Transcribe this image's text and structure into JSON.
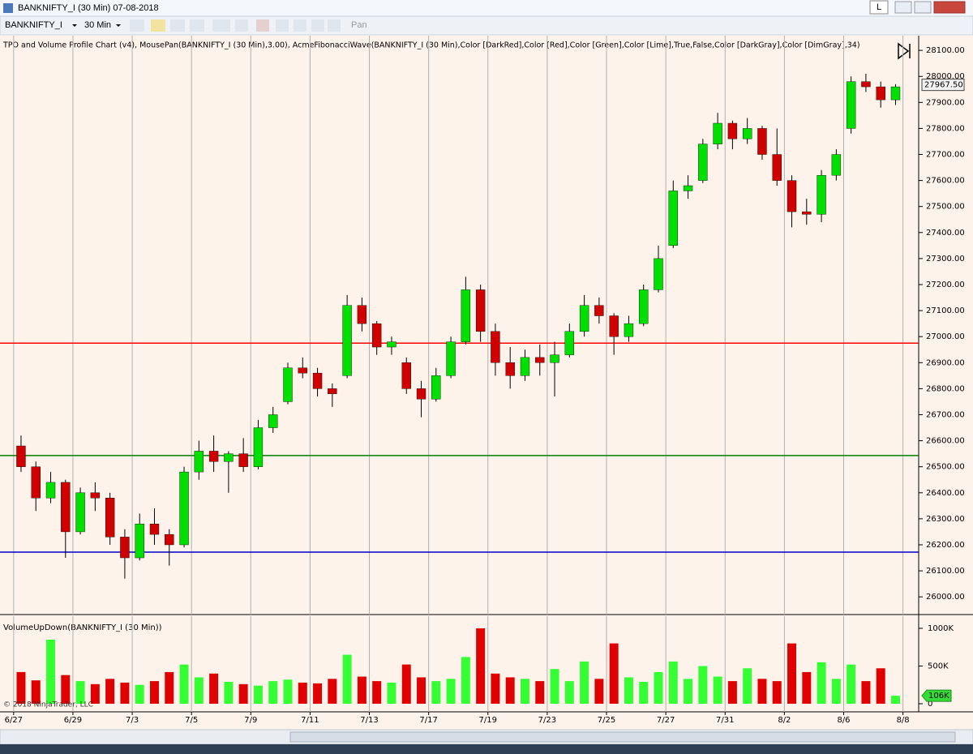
{
  "window": {
    "title": "BANKNIFTY_I (30 Min)  07-08-2018",
    "button": "L"
  },
  "toolbar": {
    "instrument": "BANKNIFTY_I",
    "interval": "30 Min",
    "pan": "Pan"
  },
  "copyright": "© 2018 NinjaTrader, LLC",
  "chart_data": [
    {
      "type": "candlestick",
      "title": "TPO and Volume Profile Chart (v4), MousePan(BANKNIFTY_I (30 Min),3.00), AcmeFibonacciWave(BANKNIFTY_I (30 Min),Color [DarkRed],Color [Red],Color [Green],Color [Lime],True,False,Color [DarkGray],Color [DimGray],34)",
      "x": [
        0.25,
        0.75,
        1.25,
        1.75,
        2.25,
        2.75,
        3.25,
        3.75,
        4.25,
        4.75,
        5.25,
        5.75,
        6.25,
        6.75,
        7.25,
        7.75,
        8.25,
        8.75,
        9.25,
        9.75,
        10.25,
        10.75,
        11.25,
        11.75,
        12.25,
        12.75,
        13.25,
        13.75,
        14.25,
        14.75,
        15.25,
        15.75,
        16.25,
        16.75,
        17.25,
        17.75,
        18.25,
        18.75,
        19.25,
        19.75,
        20.25,
        20.75,
        21.25,
        21.75,
        22.25,
        22.75,
        23.25,
        23.75,
        24.25,
        24.75,
        25.25,
        25.75,
        26.25,
        26.75,
        27.25,
        27.75,
        28.25,
        28.75,
        29.25,
        29.75
      ],
      "open": [
        26580,
        26500,
        26380,
        26440,
        26250,
        26400,
        26380,
        26230,
        26150,
        26280,
        26240,
        26200,
        26480,
        26560,
        26520,
        26550,
        26500,
        26650,
        26750,
        26880,
        26860,
        26800,
        26850,
        27120,
        27050,
        26960,
        26900,
        26800,
        26760,
        26850,
        26980,
        27180,
        27020,
        26900,
        26850,
        26920,
        26900,
        26930,
        27020,
        27120,
        27080,
        27000,
        27050,
        27180,
        27350,
        27560,
        27600,
        27740,
        27820,
        27760,
        27800,
        27700,
        27600,
        27480,
        27470,
        27620,
        27800,
        27980,
        27960,
        27910
      ],
      "high": [
        26620,
        26520,
        26480,
        26450,
        26420,
        26440,
        26400,
        26260,
        26320,
        26340,
        26260,
        26500,
        26600,
        26620,
        26560,
        26610,
        26680,
        26730,
        26900,
        26920,
        26880,
        26820,
        27160,
        27150,
        27060,
        27000,
        26920,
        26830,
        26880,
        27000,
        27230,
        27200,
        27050,
        26960,
        26950,
        26970,
        26980,
        27050,
        27160,
        27150,
        27090,
        27080,
        27200,
        27350,
        27600,
        27620,
        27760,
        27860,
        27830,
        27840,
        27810,
        27800,
        27620,
        27530,
        27640,
        27720,
        28000,
        28010,
        27980,
        27970
      ],
      "low": [
        26480,
        26330,
        26360,
        26150,
        26240,
        26330,
        26200,
        26070,
        26140,
        26200,
        26120,
        26190,
        26450,
        26480,
        26400,
        26480,
        26490,
        26630,
        26740,
        26840,
        26770,
        26730,
        26840,
        27020,
        26930,
        26930,
        26780,
        26690,
        26750,
        26840,
        26970,
        26980,
        26850,
        26800,
        26830,
        26850,
        26770,
        26920,
        27000,
        27050,
        26930,
        26980,
        27040,
        27170,
        27340,
        27530,
        27590,
        27720,
        27720,
        27740,
        27680,
        27580,
        27420,
        27430,
        27440,
        27600,
        27780,
        27940,
        27880,
        27890
      ],
      "close": [
        26500,
        26380,
        26440,
        26250,
        26400,
        26380,
        26230,
        26150,
        26280,
        26240,
        26200,
        26480,
        26560,
        26520,
        26550,
        26500,
        26650,
        26700,
        26880,
        26860,
        26800,
        26780,
        27120,
        27050,
        26960,
        26980,
        26800,
        26760,
        26850,
        26980,
        27180,
        27020,
        26900,
        26850,
        26920,
        26900,
        26930,
        27020,
        27120,
        27080,
        27000,
        27050,
        27180,
        27300,
        27560,
        27580,
        27740,
        27820,
        27760,
        27800,
        27700,
        27600,
        27480,
        27470,
        27620,
        27700,
        27980,
        27960,
        27910,
        27960
      ],
      "up_color": "#00e000",
      "down_color": "#d00000",
      "wick_color": "#000000",
      "xlim": [
        -0.46,
        30.53
      ],
      "xticks": [
        {
          "value": 0,
          "label": "6/27"
        },
        {
          "value": 2,
          "label": "6/29"
        },
        {
          "value": 4,
          "label": "7/3"
        },
        {
          "value": 6,
          "label": "7/5"
        },
        {
          "value": 8,
          "label": "7/9"
        },
        {
          "value": 10,
          "label": "7/11"
        },
        {
          "value": 12,
          "label": "7/13"
        },
        {
          "value": 14,
          "label": "7/17"
        },
        {
          "value": 16,
          "label": "7/19"
        },
        {
          "value": 18,
          "label": "7/23"
        },
        {
          "value": 20,
          "label": "7/25"
        },
        {
          "value": 22,
          "label": "7/27"
        },
        {
          "value": 24,
          "label": "7/31"
        },
        {
          "value": 26,
          "label": "8/2"
        },
        {
          "value": 28,
          "label": "8/6"
        },
        {
          "value": 30,
          "label": "8/8"
        }
      ],
      "ylim": [
        25932,
        28144
      ],
      "yticks": [
        {
          "value": 26000,
          "label": "26000.00"
        },
        {
          "value": 26100,
          "label": "26100.00"
        },
        {
          "value": 26200,
          "label": "26200.00"
        },
        {
          "value": 26300,
          "label": "26300.00"
        },
        {
          "value": 26400,
          "label": "26400.00"
        },
        {
          "value": 26500,
          "label": "26500.00"
        },
        {
          "value": 26600,
          "label": "26600.00"
        },
        {
          "value": 26700,
          "label": "26700.00"
        },
        {
          "value": 26800,
          "label": "26800.00"
        },
        {
          "value": 26900,
          "label": "26900.00"
        },
        {
          "value": 27000,
          "label": "27000.00"
        },
        {
          "value": 27100,
          "label": "27100.00"
        },
        {
          "value": 27200,
          "label": "27200.00"
        },
        {
          "value": 27300,
          "label": "27300.00"
        },
        {
          "value": 27400,
          "label": "27400.00"
        },
        {
          "value": 27500,
          "label": "27500.00"
        },
        {
          "value": 27600,
          "label": "27600.00"
        },
        {
          "value": 27700,
          "label": "27700.00"
        },
        {
          "value": 27800,
          "label": "27800.00"
        },
        {
          "value": 27900,
          "label": "27900.00"
        },
        {
          "value": 28000,
          "label": "28000.00"
        },
        {
          "value": 28100,
          "label": "28100.00"
        }
      ],
      "vertical_grid": true,
      "hlines": [
        {
          "value": 26975,
          "color": "#ff0000"
        },
        {
          "value": 26543,
          "color": "#008000"
        },
        {
          "value": 26172,
          "color": "#0000cc"
        }
      ],
      "last_price": {
        "value": 27967.5,
        "label": "27967.50"
      }
    },
    {
      "type": "bar",
      "title": "VolumeUpDown(BANKNIFTY_I (30 Min))",
      "x": [
        0.25,
        0.75,
        1.25,
        1.75,
        2.25,
        2.75,
        3.25,
        3.75,
        4.25,
        4.75,
        5.25,
        5.75,
        6.25,
        6.75,
        7.25,
        7.75,
        8.25,
        8.75,
        9.25,
        9.75,
        10.25,
        10.75,
        11.25,
        11.75,
        12.25,
        12.75,
        13.25,
        13.75,
        14.25,
        14.75,
        15.25,
        15.75,
        16.25,
        16.75,
        17.25,
        17.75,
        18.25,
        18.75,
        19.25,
        19.75,
        20.25,
        20.75,
        21.25,
        21.75,
        22.25,
        22.75,
        23.25,
        23.75,
        24.25,
        24.75,
        25.25,
        25.75,
        26.25,
        26.75,
        27.25,
        27.75,
        28.25,
        28.75,
        29.25,
        29.75
      ],
      "values": [
        420000,
        310000,
        850000,
        380000,
        300000,
        260000,
        330000,
        280000,
        250000,
        300000,
        420000,
        520000,
        350000,
        400000,
        290000,
        260000,
        240000,
        300000,
        320000,
        280000,
        270000,
        330000,
        650000,
        360000,
        300000,
        280000,
        520000,
        350000,
        300000,
        330000,
        620000,
        1000000,
        400000,
        350000,
        330000,
        300000,
        460000,
        300000,
        560000,
        330000,
        800000,
        350000,
        290000,
        420000,
        560000,
        330000,
        500000,
        360000,
        300000,
        470000,
        330000,
        300000,
        800000,
        420000,
        550000,
        330000,
        520000,
        300000,
        470000,
        106000
      ],
      "up_color": "#33ff33",
      "down_color": "#e00000",
      "ylim": [
        0,
        1000000
      ],
      "yticks": [
        {
          "value": 0,
          "label": "0"
        },
        {
          "value": 500000,
          "label": "500K"
        },
        {
          "value": 1000000,
          "label": "1000K"
        }
      ],
      "last_value": {
        "value": 106000,
        "label": "106K"
      }
    }
  ]
}
